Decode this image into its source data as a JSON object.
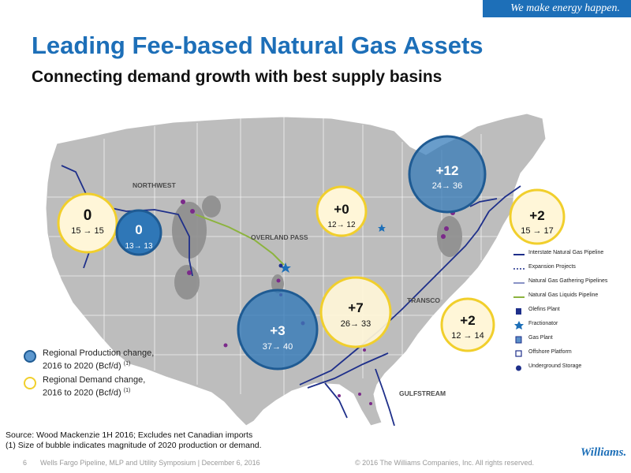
{
  "header": {
    "tagline": "We make energy happen.",
    "title": "Leading Fee-based Natural Gas Assets",
    "subtitle": "Connecting demand growth with best supply basins"
  },
  "map": {
    "region_labels": [
      "NORTHWEST",
      "OVERLAND PASS",
      "TRANSCO",
      "GULFSTREAM"
    ],
    "bubbles": [
      {
        "kind": "demand",
        "change": "0",
        "range": "15 → 15"
      },
      {
        "kind": "production",
        "change": "0",
        "range": "13→ 13"
      },
      {
        "kind": "demand",
        "change": "+0",
        "range": "12→ 12"
      },
      {
        "kind": "production",
        "change": "+12",
        "range": "24→ 36"
      },
      {
        "kind": "demand",
        "change": "+2",
        "range": "15 → 17"
      },
      {
        "kind": "production",
        "change": "+3",
        "range": "37→ 40"
      },
      {
        "kind": "demand",
        "change": "+7",
        "range": "26→ 33"
      },
      {
        "kind": "demand",
        "change": "+2",
        "range": "12 → 14"
      }
    ],
    "colors": {
      "production_fill": "#2f77b7",
      "production_stroke": "#1f5b93",
      "demand_fill": "#fff6d8",
      "demand_stroke": "#f1cf2c",
      "land": "#bdbdbd",
      "pipeline": "#1e2f8a",
      "ngl_pipeline": "#8cb33e"
    }
  },
  "legend": {
    "items": [
      {
        "label": "Interstate Natural Gas Pipeline",
        "icon": "line-icon"
      },
      {
        "label": "Expansion Projects",
        "icon": "dashed-line-icon"
      },
      {
        "label": "Natural Gas Gathering Pipelines",
        "icon": "line-icon"
      },
      {
        "label": "Natural Gas Liquids Pipeline",
        "icon": "green-line-icon"
      },
      {
        "label": "Olefins Plant",
        "icon": "olefins-plant-icon"
      },
      {
        "label": "Fractionator",
        "icon": "star-icon"
      },
      {
        "label": "Gas Plant",
        "icon": "gas-plant-icon"
      },
      {
        "label": "Offshore Platform",
        "icon": "platform-icon"
      },
      {
        "label": "Underground Storage",
        "icon": "storage-icon"
      }
    ]
  },
  "bubble_key": {
    "production": {
      "line1": "Regional Production change,",
      "line2": "2016 to 2020 (Bcf/d)",
      "note": "(1)"
    },
    "demand": {
      "line1": "Regional Demand change,",
      "line2": "2016 to 2020 (Bcf/d)",
      "note": "(1)"
    }
  },
  "source": {
    "line1": "Source: Wood Mackenzie 1H 2016; Excludes net Canadian imports",
    "line2": "(1) Size of bubble indicates magnitude of 2020 production or demand."
  },
  "footer": {
    "page": "6",
    "event": "Wells Fargo Pipeline, MLP and Utility Symposium | December 6, 2016",
    "copyright": "© 2016 The Williams Companies, Inc. All rights reserved.",
    "logo": "Williams."
  }
}
